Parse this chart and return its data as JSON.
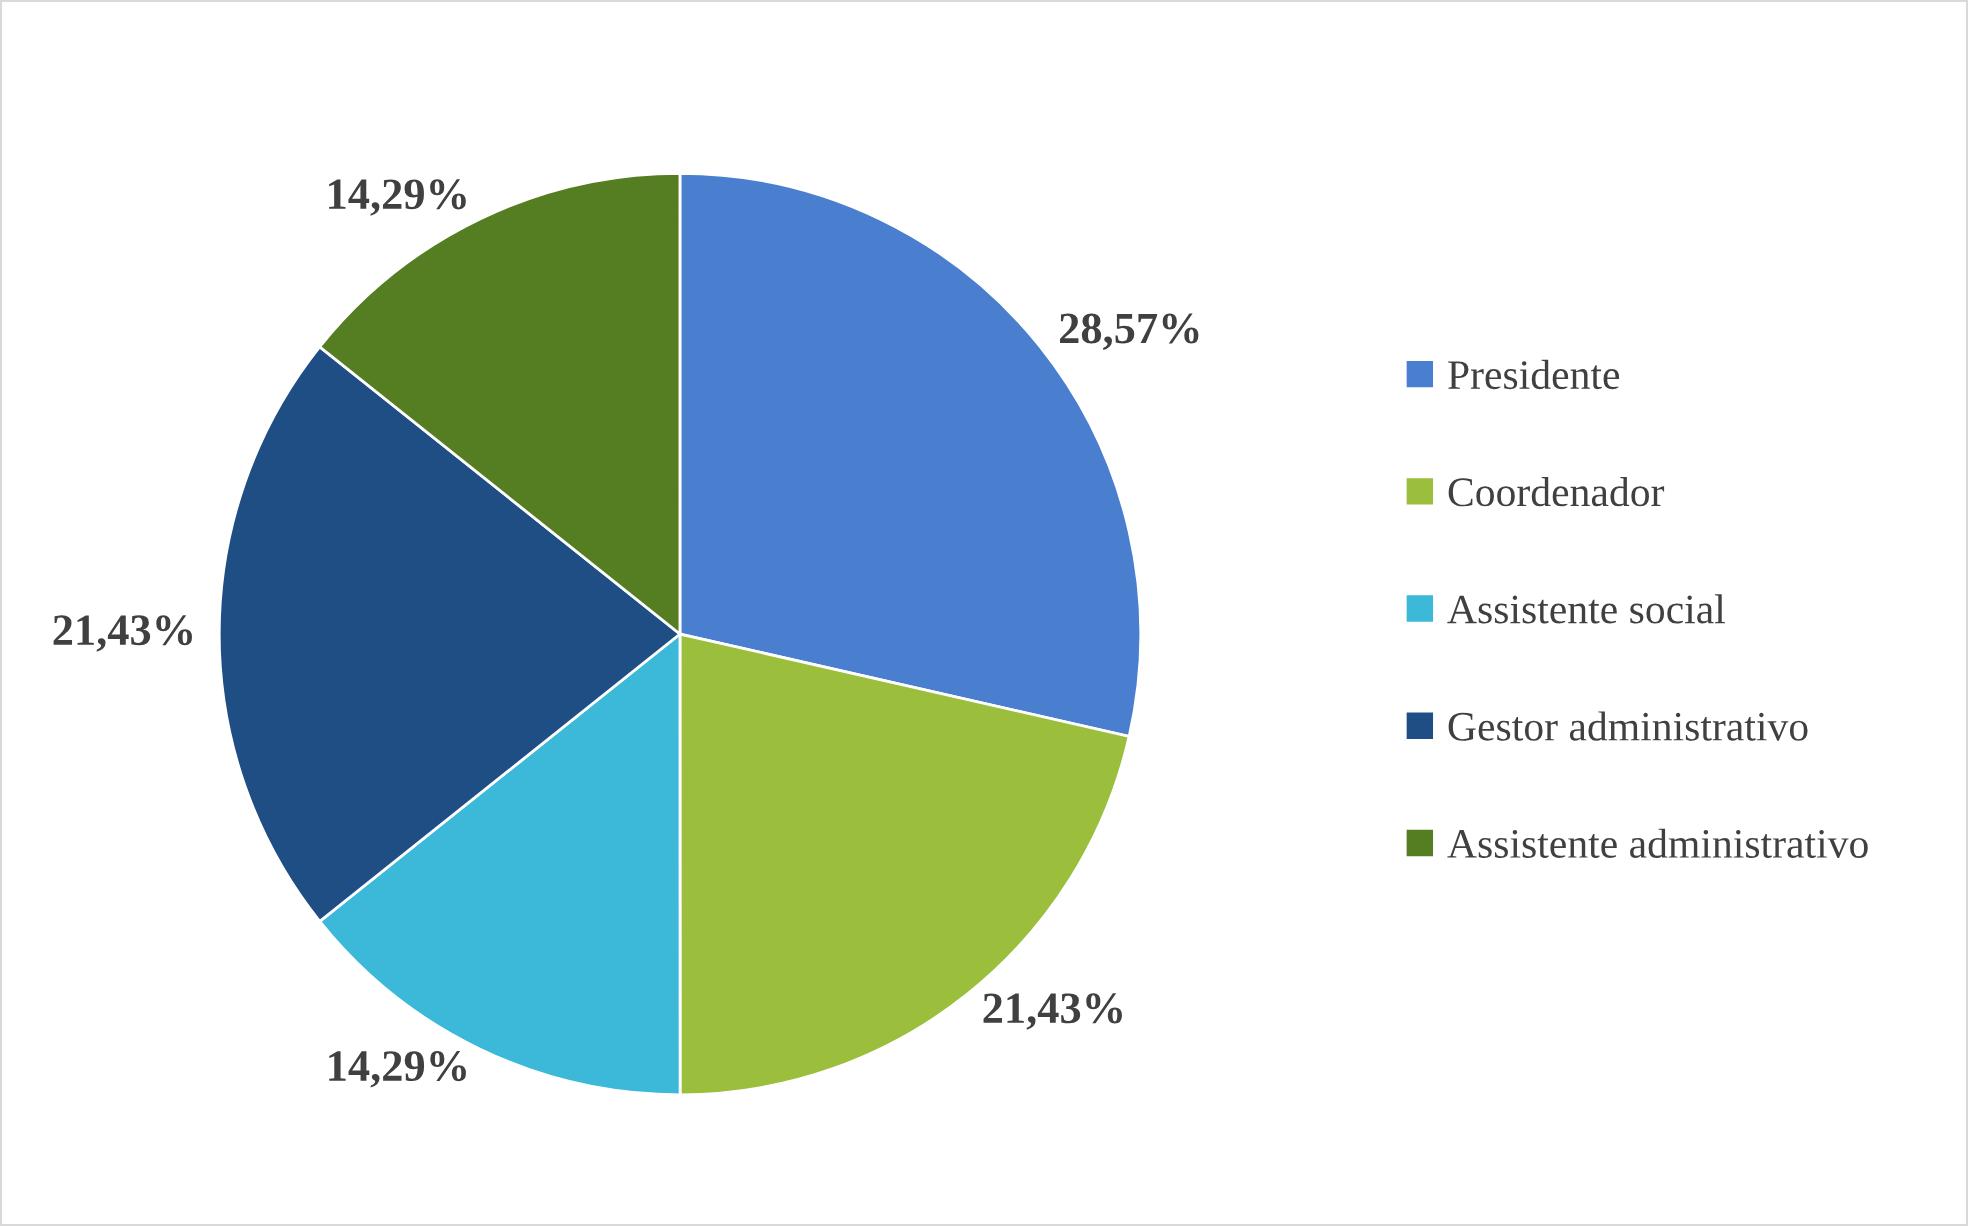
{
  "chart_data": {
    "type": "pie",
    "categories": [
      "Presidente",
      "Coordenador",
      "Assistente social",
      "Gestor administrativo",
      "Assistente administrativo"
    ],
    "values": [
      28.57,
      21.43,
      14.29,
      21.43,
      14.29
    ],
    "value_labels": [
      "28,57%",
      "21,43%",
      "14,29%",
      "21,43%",
      "14,29%"
    ],
    "colors": [
      "#4a7fcf",
      "#9bbf3c",
      "#3cb8d8",
      "#1f4e85",
      "#557d22"
    ],
    "legend": "right"
  }
}
